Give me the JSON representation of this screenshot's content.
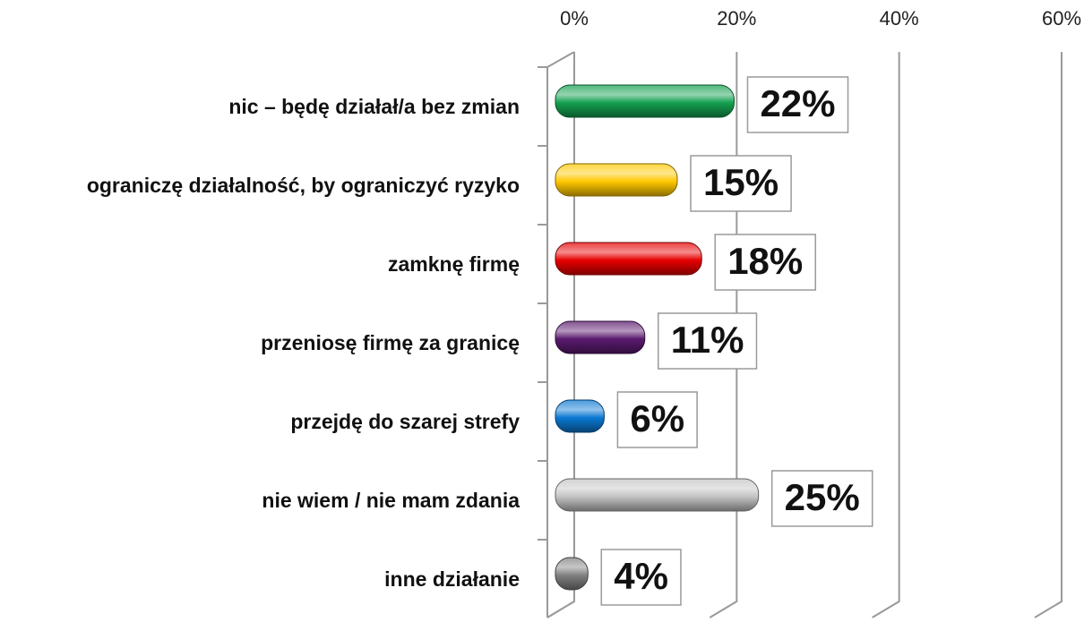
{
  "chart_data": {
    "type": "bar",
    "orientation": "horizontal",
    "categories": [
      "nic – będę działał/a bez zmian",
      "ograniczę działalność, by ograniczyć ryzyko",
      "zamknę firmę",
      "przeniosę firmę za granicę",
      "przejdę do szarej strefy",
      "nie wiem / nie mam zdania",
      "inne działanie"
    ],
    "values": [
      22,
      15,
      18,
      11,
      6,
      25,
      4
    ],
    "value_labels": [
      "22%",
      "15%",
      "18%",
      "11%",
      "6%",
      "25%",
      "4%"
    ],
    "colors": [
      "#14a050",
      "#ffc800",
      "#e60000",
      "#5a1a6e",
      "#0a78d2",
      "#c4c4c4",
      "#808080"
    ],
    "xlim": [
      0,
      60
    ],
    "xticks": [
      {
        "value": 0,
        "label": "0%"
      },
      {
        "value": 20,
        "label": "20%"
      },
      {
        "value": 40,
        "label": "40%"
      },
      {
        "value": 60,
        "label": "60%"
      }
    ],
    "grid": true
  }
}
